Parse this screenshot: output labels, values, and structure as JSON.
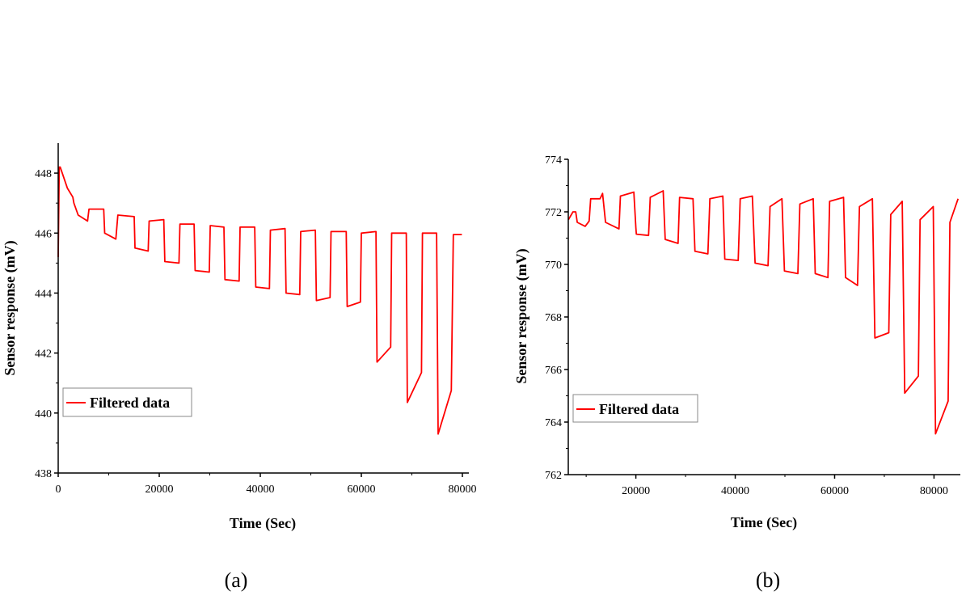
{
  "chart_data": [
    {
      "type": "line",
      "panel_label": "(a)",
      "xlabel": "Time (Sec)",
      "ylabel": "Sensor response (mV)",
      "xlim": [
        0,
        80000
      ],
      "ylim": [
        438,
        449
      ],
      "xticks": [
        0,
        20000,
        40000,
        60000,
        80000
      ],
      "yticks": [
        438,
        440,
        442,
        444,
        446,
        448
      ],
      "grid": false,
      "legend_position": "bottom-left",
      "series": [
        {
          "name": "Filtered data",
          "color": "#ff0000",
          "x": [
            0,
            200,
            400,
            1800,
            2900,
            3100,
            3950,
            5800,
            6100,
            9000,
            9200,
            11400,
            11800,
            15040,
            15200,
            17800,
            18000,
            20900,
            21100,
            23900,
            24100,
            26900,
            27100,
            29900,
            30100,
            32800,
            33000,
            35800,
            36000,
            38900,
            39100,
            41800,
            42000,
            44900,
            45100,
            47800,
            48000,
            50900,
            51100,
            53800,
            54000,
            57000,
            57200,
            59800,
            60000,
            62900,
            63100,
            65800,
            66000,
            68900,
            69100,
            71900,
            72100,
            74900,
            75200,
            77800,
            78200,
            79900
          ],
          "y": [
            445.2,
            448.2,
            448.2,
            447.5,
            447.2,
            447.0,
            446.6,
            446.4,
            446.8,
            446.8,
            446.0,
            445.8,
            446.6,
            446.55,
            445.5,
            445.4,
            446.4,
            446.45,
            445.05,
            445.0,
            446.3,
            446.3,
            444.75,
            444.7,
            446.25,
            446.2,
            444.45,
            444.4,
            446.2,
            446.2,
            444.2,
            444.15,
            446.1,
            446.15,
            444.0,
            443.95,
            446.05,
            446.1,
            443.75,
            443.85,
            446.05,
            446.05,
            443.55,
            443.7,
            446.0,
            446.05,
            441.7,
            442.2,
            446.0,
            446.0,
            440.35,
            441.35,
            446.0,
            446.0,
            439.3,
            440.75,
            445.95,
            445.95
          ]
        }
      ]
    },
    {
      "type": "line",
      "panel_label": "(b)",
      "xlabel": "Time (Sec)",
      "ylabel": "Sensor response (mV)",
      "xlim": [
        6400,
        85300
      ],
      "ylim": [
        762,
        774
      ],
      "xticks": [
        20000,
        40000,
        60000,
        80000
      ],
      "yticks": [
        762,
        764,
        766,
        768,
        770,
        772,
        774
      ],
      "grid": false,
      "legend_position": "bottom-left",
      "series": [
        {
          "name": "Filtered data",
          "color": "#ff0000",
          "x": [
            6425,
            7350,
            7900,
            8200,
            9800,
            10600,
            10900,
            12800,
            13300,
            13900,
            16600,
            16900,
            19600,
            20000,
            20100,
            22550,
            22900,
            25500,
            25900,
            28500,
            28800,
            31500,
            31900,
            34500,
            34900,
            37500,
            37900,
            40600,
            41000,
            43450,
            44000,
            46600,
            47000,
            49400,
            49900,
            52600,
            53000,
            55700,
            56100,
            58650,
            59000,
            61800,
            62200,
            64600,
            65000,
            67600,
            68100,
            70900,
            71300,
            73600,
            74100,
            76850,
            77200,
            79850,
            80300,
            82850,
            83200,
            84850
          ],
          "y": [
            771.7,
            772.0,
            772.0,
            771.6,
            771.45,
            771.65,
            772.5,
            772.5,
            772.7,
            771.6,
            771.35,
            772.6,
            772.75,
            771.4,
            771.15,
            771.1,
            772.55,
            772.8,
            770.95,
            770.8,
            772.55,
            772.5,
            770.5,
            770.4,
            772.5,
            772.6,
            770.2,
            770.15,
            772.5,
            772.6,
            770.05,
            769.95,
            772.2,
            772.5,
            769.75,
            769.65,
            772.3,
            772.5,
            769.65,
            769.5,
            772.4,
            772.55,
            769.5,
            769.2,
            772.2,
            772.5,
            767.2,
            767.4,
            771.9,
            772.4,
            765.1,
            765.75,
            771.7,
            772.2,
            763.55,
            764.8,
            771.6,
            772.5
          ]
        }
      ]
    }
  ]
}
